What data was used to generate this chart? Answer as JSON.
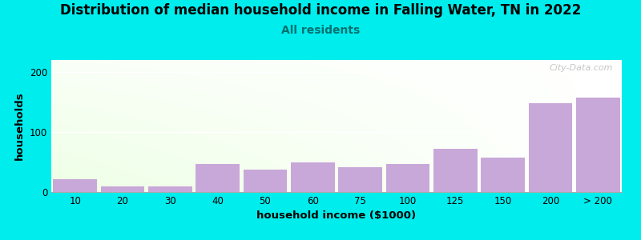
{
  "title": "Distribution of median household income in Falling Water, TN in 2022",
  "subtitle": "All residents",
  "xlabel": "household income ($1000)",
  "ylabel": "households",
  "background_outer": "#00EDED",
  "categories": [
    "10",
    "20",
    "30",
    "40",
    "50",
    "60",
    "75",
    "100",
    "125",
    "150",
    "200",
    "> 200"
  ],
  "values": [
    22,
    10,
    9,
    47,
    38,
    50,
    42,
    47,
    72,
    58,
    148,
    158
  ],
  "bar_color": "#C8A8D8",
  "ylim": [
    0,
    220
  ],
  "yticks": [
    0,
    100,
    200
  ],
  "title_fontsize": 12,
  "subtitle_fontsize": 10,
  "axis_label_fontsize": 9.5,
  "tick_fontsize": 8.5,
  "watermark": "City-Data.com"
}
